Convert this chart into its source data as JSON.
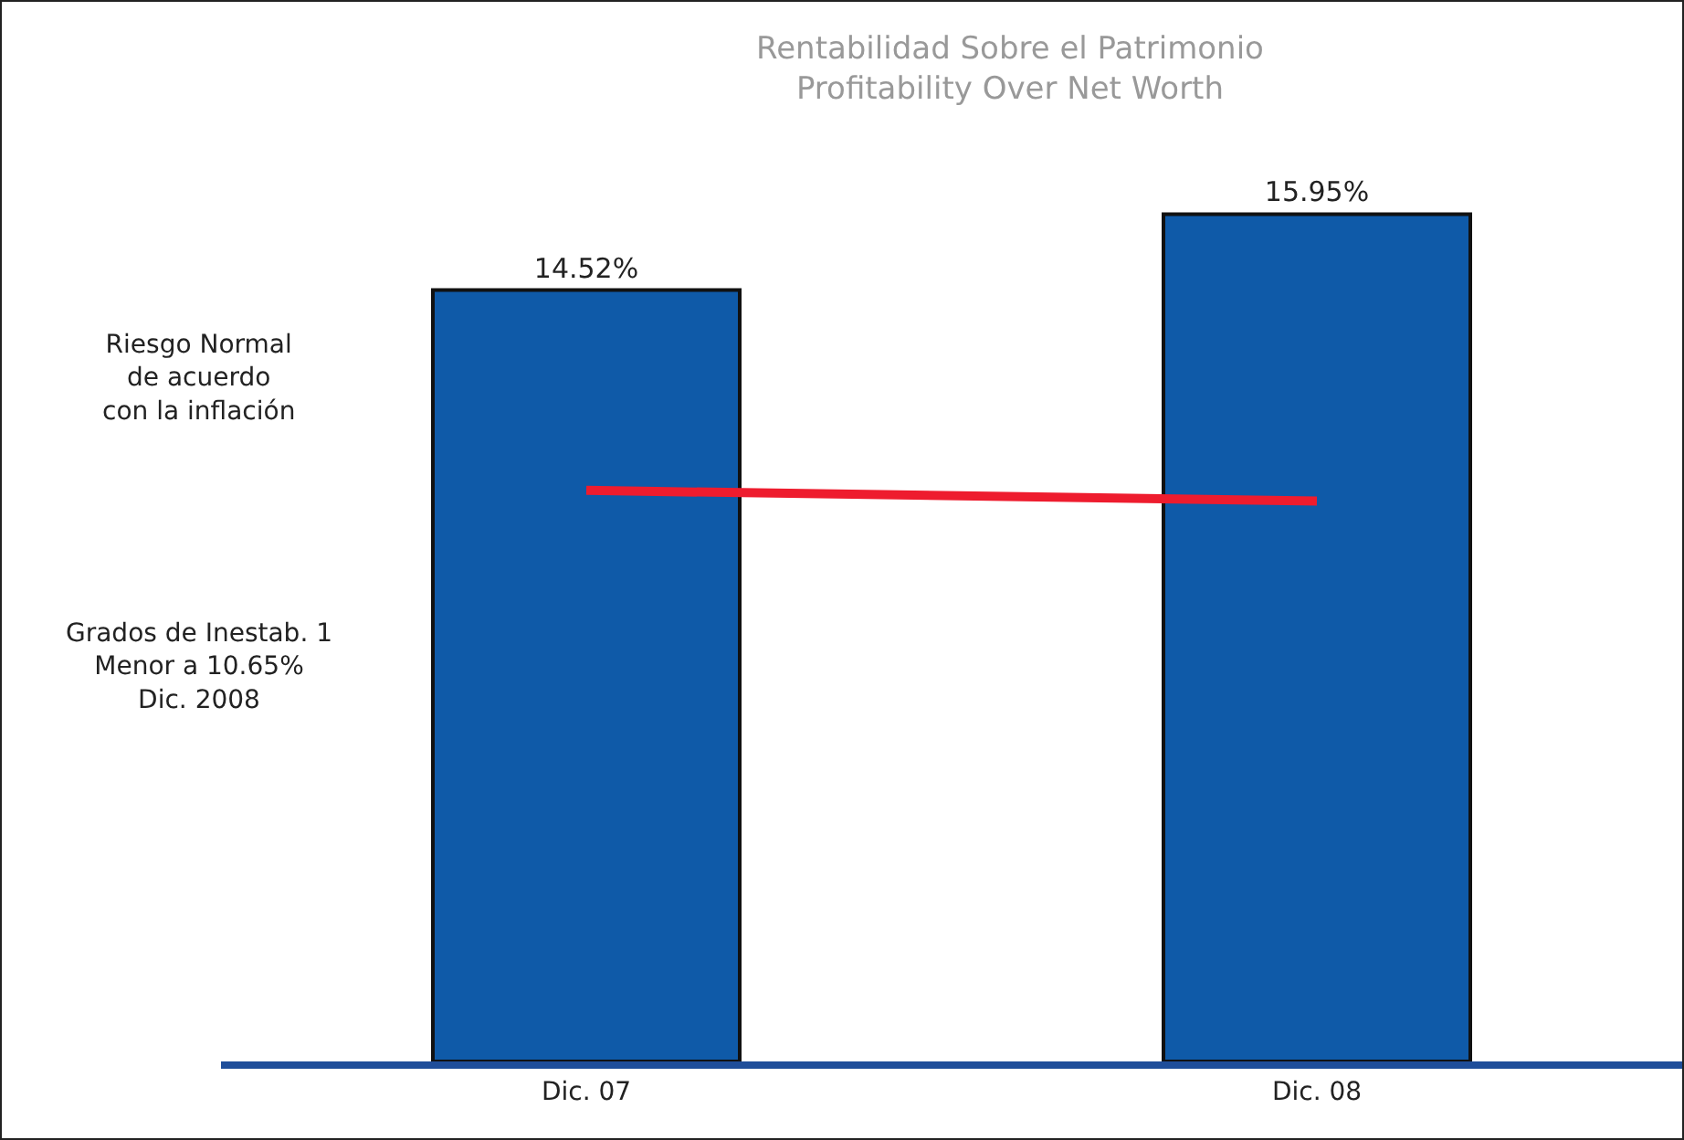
{
  "chart_data": {
    "type": "bar",
    "title": "Rentabilidad Sobre el Patrimonio",
    "subtitle": "Profitability Over Net Worth",
    "categories": [
      "Dic. 07",
      "Dic. 08"
    ],
    "series": [
      {
        "color": "#0f5aa8",
        "values": [
          14.52,
          15.95
        ],
        "value_labels": [
          "14.52%",
          "15.95%"
        ]
      },
      {
        "type": "line",
        "color": "#ee1c2e",
        "values": [
          10.75,
          10.55
        ],
        "marker": "none",
        "line_style": "solid"
      }
    ],
    "grid": false,
    "tick_labels": "x",
    "annotations": [
      "Riesgo Normal\nde acuerdo\ncon la inflación",
      "Grados de Inestab. 1\nMenor a 10.65%\nDic. 2008"
    ]
  }
}
